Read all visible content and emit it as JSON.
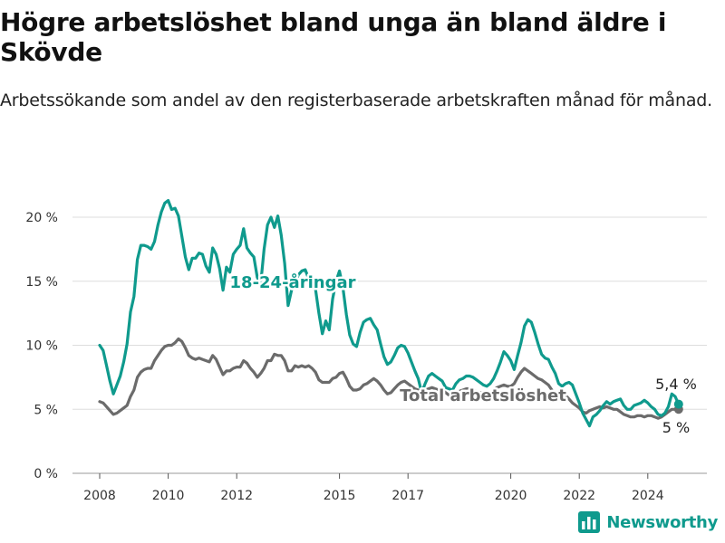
{
  "title": "Högre arbetslöshet bland unga än bland äldre i Skövde",
  "subtitle": "Arbetssökande som andel av den registerbaserade arbetskraften månad för månad.",
  "brand": {
    "name": "Newsworthy",
    "color": "#0f9a8d"
  },
  "chart_data": {
    "type": "line",
    "title": "Högre arbetslöshet bland unga än bland äldre i Skövde",
    "subtitle": "Arbetssökande som andel av den registerbaserade arbetskraften månad för månad.",
    "ylim": [
      0,
      20
    ],
    "yticks": [
      0,
      5,
      10,
      15,
      20
    ],
    "ytick_labels": [
      "0 %",
      "5 %",
      "10 %",
      "15 %",
      "20 %"
    ],
    "xlim": [
      2007.6,
      2025.3
    ],
    "xticks": [
      2008,
      2010,
      2012,
      2015,
      2017,
      2020,
      2022,
      2024
    ],
    "xtick_labels": [
      "2008",
      "2010",
      "2012",
      "2015",
      "2017",
      "2020",
      "2022",
      "2024"
    ],
    "grid": "horizontal",
    "series": [
      {
        "name": "18-24-åringar",
        "color": "#0f9a8d",
        "end_label": "5,4 %",
        "x": [
          2008.0,
          2008.1,
          2008.2,
          2008.3,
          2008.4,
          2008.5,
          2008.6,
          2008.7,
          2008.8,
          2008.9,
          2009.0,
          2009.1,
          2009.2,
          2009.3,
          2009.4,
          2009.5,
          2009.6,
          2009.7,
          2009.8,
          2009.9,
          2010.0,
          2010.1,
          2010.2,
          2010.3,
          2010.4,
          2010.5,
          2010.6,
          2010.7,
          2010.8,
          2010.9,
          2011.0,
          2011.1,
          2011.2,
          2011.3,
          2011.4,
          2011.5,
          2011.6,
          2011.7,
          2011.8,
          2011.9,
          2012.0,
          2012.1,
          2012.2,
          2012.3,
          2012.4,
          2012.5,
          2012.6,
          2012.7,
          2012.8,
          2012.9,
          2013.0,
          2013.1,
          2013.2,
          2013.3,
          2013.4,
          2013.5,
          2013.6,
          2013.7,
          2013.8,
          2013.9,
          2014.0,
          2014.1,
          2014.2,
          2014.3,
          2014.4,
          2014.5,
          2014.6,
          2014.7,
          2014.8,
          2014.9,
          2015.0,
          2015.1,
          2015.2,
          2015.3,
          2015.4,
          2015.5,
          2015.6,
          2015.7,
          2015.8,
          2015.9,
          2016.0,
          2016.1,
          2016.2,
          2016.3,
          2016.4,
          2016.5,
          2016.6,
          2016.7,
          2016.8,
          2016.9,
          2017.0,
          2017.1,
          2017.2,
          2017.3,
          2017.4,
          2017.5,
          2017.6,
          2017.7,
          2017.8,
          2017.9,
          2018.0,
          2018.1,
          2018.2,
          2018.3,
          2018.4,
          2018.5,
          2018.6,
          2018.7,
          2018.8,
          2018.9,
          2019.0,
          2019.1,
          2019.2,
          2019.3,
          2019.4,
          2019.5,
          2019.6,
          2019.7,
          2019.8,
          2019.9,
          2020.0,
          2020.1,
          2020.2,
          2020.3,
          2020.4,
          2020.5,
          2020.6,
          2020.7,
          2020.8,
          2020.9,
          2021.0,
          2021.1,
          2021.2,
          2021.3,
          2021.4,
          2021.5,
          2021.6,
          2021.7,
          2021.8,
          2021.9,
          2022.0,
          2022.1,
          2022.2,
          2022.3,
          2022.4,
          2022.5,
          2022.6,
          2022.7,
          2022.8,
          2022.9,
          2023.0,
          2023.1,
          2023.2,
          2023.3,
          2023.4,
          2023.5,
          2023.6,
          2023.7,
          2023.8,
          2023.9,
          2024.0,
          2024.1,
          2024.2,
          2024.3,
          2024.4,
          2024.5,
          2024.6,
          2024.7,
          2024.8,
          2024.9
        ],
        "values": [
          10.0,
          9.6,
          8.4,
          7.2,
          6.2,
          6.9,
          7.6,
          8.7,
          10.1,
          12.6,
          13.8,
          16.7,
          17.8,
          17.8,
          17.7,
          17.5,
          18.1,
          19.4,
          20.4,
          21.1,
          21.3,
          20.6,
          20.7,
          20.1,
          18.5,
          16.9,
          15.9,
          16.8,
          16.8,
          17.2,
          17.1,
          16.2,
          15.7,
          17.6,
          17.1,
          16.0,
          14.3,
          16.1,
          15.7,
          17.1,
          17.5,
          17.8,
          19.1,
          17.6,
          17.2,
          16.9,
          15.3,
          14.8,
          17.5,
          19.4,
          20.0,
          19.2,
          20.1,
          18.6,
          16.4,
          13.1,
          14.3,
          14.8,
          15.5,
          15.8,
          15.9,
          15.2,
          14.9,
          14.4,
          12.5,
          10.9,
          11.9,
          11.2,
          13.6,
          15.0,
          15.8,
          14.5,
          12.4,
          10.8,
          10.1,
          9.9,
          11.0,
          11.8,
          12.0,
          12.1,
          11.6,
          11.2,
          10.1,
          9.1,
          8.5,
          8.7,
          9.2,
          9.8,
          10.0,
          9.9,
          9.4,
          8.7,
          8.0,
          7.4,
          6.3,
          7.0,
          7.6,
          7.8,
          7.6,
          7.4,
          7.2,
          6.7,
          6.6,
          6.5,
          7.0,
          7.3,
          7.4,
          7.6,
          7.6,
          7.5,
          7.3,
          7.1,
          6.9,
          6.8,
          7.0,
          7.4,
          8.0,
          8.7,
          9.5,
          9.2,
          8.8,
          8.1,
          9.2,
          10.2,
          11.5,
          12.0,
          11.8,
          11.0,
          10.1,
          9.3,
          9.0,
          8.9,
          8.3,
          7.8,
          7.0,
          6.8,
          7.0,
          7.1,
          6.9,
          6.2,
          5.5,
          4.7,
          4.2,
          3.7,
          4.4,
          4.6,
          4.9,
          5.3,
          5.6,
          5.4,
          5.6,
          5.7,
          5.8,
          5.3,
          5.0,
          5.0,
          5.3,
          5.4,
          5.5,
          5.7,
          5.5,
          5.2,
          5.0,
          4.6,
          4.5,
          4.7,
          5.2,
          6.2,
          6.0,
          5.4
        ]
      },
      {
        "name": "Total arbetslöshet",
        "color": "#6b6b6b",
        "end_label": "5 %",
        "x": [
          2008.0,
          2008.1,
          2008.2,
          2008.3,
          2008.4,
          2008.5,
          2008.6,
          2008.7,
          2008.8,
          2008.9,
          2009.0,
          2009.1,
          2009.2,
          2009.3,
          2009.4,
          2009.5,
          2009.6,
          2009.7,
          2009.8,
          2009.9,
          2010.0,
          2010.1,
          2010.2,
          2010.3,
          2010.4,
          2010.5,
          2010.6,
          2010.7,
          2010.8,
          2010.9,
          2011.0,
          2011.1,
          2011.2,
          2011.3,
          2011.4,
          2011.5,
          2011.6,
          2011.7,
          2011.8,
          2011.9,
          2012.0,
          2012.1,
          2012.2,
          2012.3,
          2012.4,
          2012.5,
          2012.6,
          2012.7,
          2012.8,
          2012.9,
          2013.0,
          2013.1,
          2013.2,
          2013.3,
          2013.4,
          2013.5,
          2013.6,
          2013.7,
          2013.8,
          2013.9,
          2014.0,
          2014.1,
          2014.2,
          2014.3,
          2014.4,
          2014.5,
          2014.6,
          2014.7,
          2014.8,
          2014.9,
          2015.0,
          2015.1,
          2015.2,
          2015.3,
          2015.4,
          2015.5,
          2015.6,
          2015.7,
          2015.8,
          2015.9,
          2016.0,
          2016.1,
          2016.2,
          2016.3,
          2016.4,
          2016.5,
          2016.6,
          2016.7,
          2016.8,
          2016.9,
          2017.0,
          2017.1,
          2017.2,
          2017.3,
          2017.4,
          2017.5,
          2017.6,
          2017.7,
          2017.8,
          2017.9,
          2018.0,
          2018.1,
          2018.2,
          2018.3,
          2018.4,
          2018.5,
          2018.6,
          2018.7,
          2018.8,
          2018.9,
          2019.0,
          2019.1,
          2019.2,
          2019.3,
          2019.4,
          2019.5,
          2019.6,
          2019.7,
          2019.8,
          2019.9,
          2020.0,
          2020.1,
          2020.2,
          2020.3,
          2020.4,
          2020.5,
          2020.6,
          2020.7,
          2020.8,
          2020.9,
          2021.0,
          2021.1,
          2021.2,
          2021.3,
          2021.4,
          2021.5,
          2021.6,
          2021.7,
          2021.8,
          2021.9,
          2022.0,
          2022.1,
          2022.2,
          2022.3,
          2022.4,
          2022.5,
          2022.6,
          2022.7,
          2022.8,
          2022.9,
          2023.0,
          2023.1,
          2023.2,
          2023.3,
          2023.4,
          2023.5,
          2023.6,
          2023.7,
          2023.8,
          2023.9,
          2024.0,
          2024.1,
          2024.2,
          2024.3,
          2024.4,
          2024.5,
          2024.6,
          2024.7,
          2024.8,
          2024.9
        ],
        "values": [
          5.6,
          5.5,
          5.2,
          4.9,
          4.6,
          4.7,
          4.9,
          5.1,
          5.3,
          6.0,
          6.5,
          7.5,
          7.9,
          8.1,
          8.2,
          8.2,
          8.8,
          9.2,
          9.6,
          9.9,
          10.0,
          10.0,
          10.2,
          10.5,
          10.3,
          9.8,
          9.2,
          9.0,
          8.9,
          9.0,
          8.9,
          8.8,
          8.7,
          9.2,
          8.9,
          8.3,
          7.7,
          8.0,
          8.0,
          8.2,
          8.3,
          8.3,
          8.8,
          8.6,
          8.2,
          7.9,
          7.5,
          7.8,
          8.2,
          8.8,
          8.8,
          9.3,
          9.2,
          9.2,
          8.8,
          8.0,
          8.0,
          8.4,
          8.3,
          8.4,
          8.3,
          8.4,
          8.2,
          7.9,
          7.3,
          7.1,
          7.1,
          7.1,
          7.4,
          7.5,
          7.8,
          7.9,
          7.4,
          6.8,
          6.5,
          6.5,
          6.6,
          6.9,
          7.0,
          7.2,
          7.4,
          7.2,
          6.9,
          6.5,
          6.2,
          6.3,
          6.6,
          6.9,
          7.1,
          7.2,
          7.0,
          6.8,
          6.6,
          6.5,
          6.3,
          6.5,
          6.6,
          6.7,
          6.6,
          6.5,
          6.5,
          6.3,
          6.1,
          6.1,
          6.3,
          6.4,
          6.5,
          6.6,
          6.6,
          6.5,
          6.4,
          6.3,
          6.3,
          6.2,
          6.3,
          6.5,
          6.7,
          6.8,
          6.9,
          6.8,
          6.8,
          7.0,
          7.5,
          7.9,
          8.2,
          8.0,
          7.8,
          7.6,
          7.4,
          7.3,
          7.1,
          6.9,
          6.5,
          6.2,
          6.2,
          6.3,
          6.1,
          5.8,
          5.5,
          5.3,
          5.1,
          4.8,
          4.7,
          4.9,
          5.0,
          5.1,
          5.2,
          5.1,
          5.2,
          5.1,
          5.0,
          5.0,
          4.8,
          4.6,
          4.5,
          4.4,
          4.4,
          4.5,
          4.5,
          4.4,
          4.5,
          4.5,
          4.4,
          4.3,
          4.4,
          4.6,
          4.8,
          5.0,
          5.0,
          5.0
        ]
      }
    ]
  }
}
